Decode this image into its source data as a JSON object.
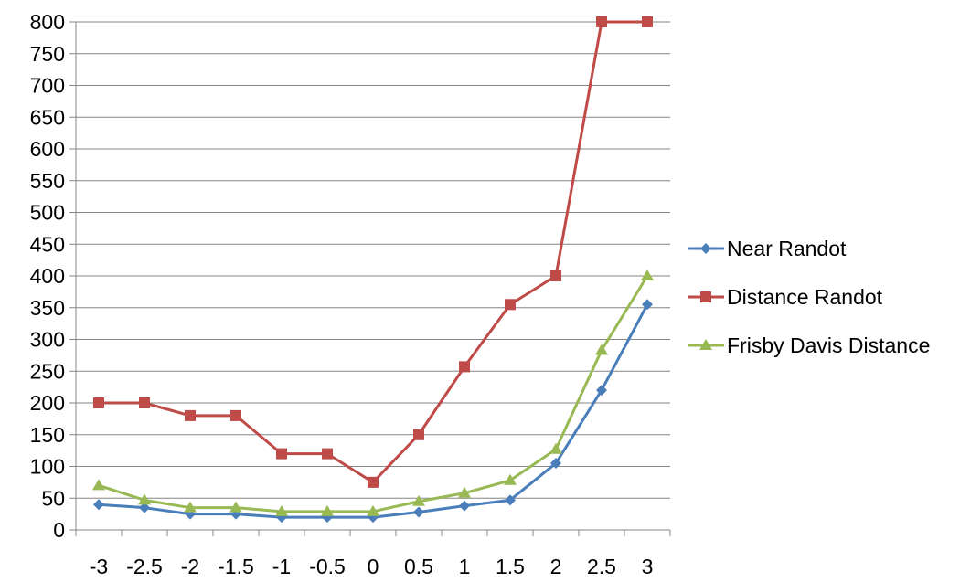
{
  "chart_data": {
    "type": "line",
    "title": "",
    "xlabel": "",
    "ylabel": "",
    "categories": [
      "-3",
      "-2.5",
      "-2",
      "-1.5",
      "-1",
      "-0.5",
      "0",
      "0.5",
      "1",
      "1.5",
      "2",
      "2.5",
      "3"
    ],
    "ylim": [
      0,
      800
    ],
    "yticks": [
      "0",
      "50",
      "100",
      "150",
      "200",
      "250",
      "300",
      "350",
      "400",
      "450",
      "500",
      "550",
      "600",
      "650",
      "700",
      "750",
      "800"
    ],
    "grid": "horizontal",
    "legend": "right",
    "series": [
      {
        "name": "Near Randot",
        "color": "#4a7ebb",
        "marker": "diamond",
        "values": [
          40,
          35,
          25,
          25,
          20,
          20,
          20,
          28,
          38,
          47,
          105,
          220,
          355
        ]
      },
      {
        "name": "Distance Randot",
        "color": "#be4b48",
        "marker": "square",
        "values": [
          200,
          200,
          180,
          180,
          120,
          120,
          75,
          150,
          257,
          355,
          400,
          800,
          800
        ]
      },
      {
        "name": "Frisby Davis Distance",
        "color": "#98b954",
        "marker": "triangle",
        "values": [
          70,
          47,
          35,
          35,
          29,
          29,
          29,
          45,
          58,
          78,
          127,
          283,
          400
        ]
      }
    ]
  }
}
